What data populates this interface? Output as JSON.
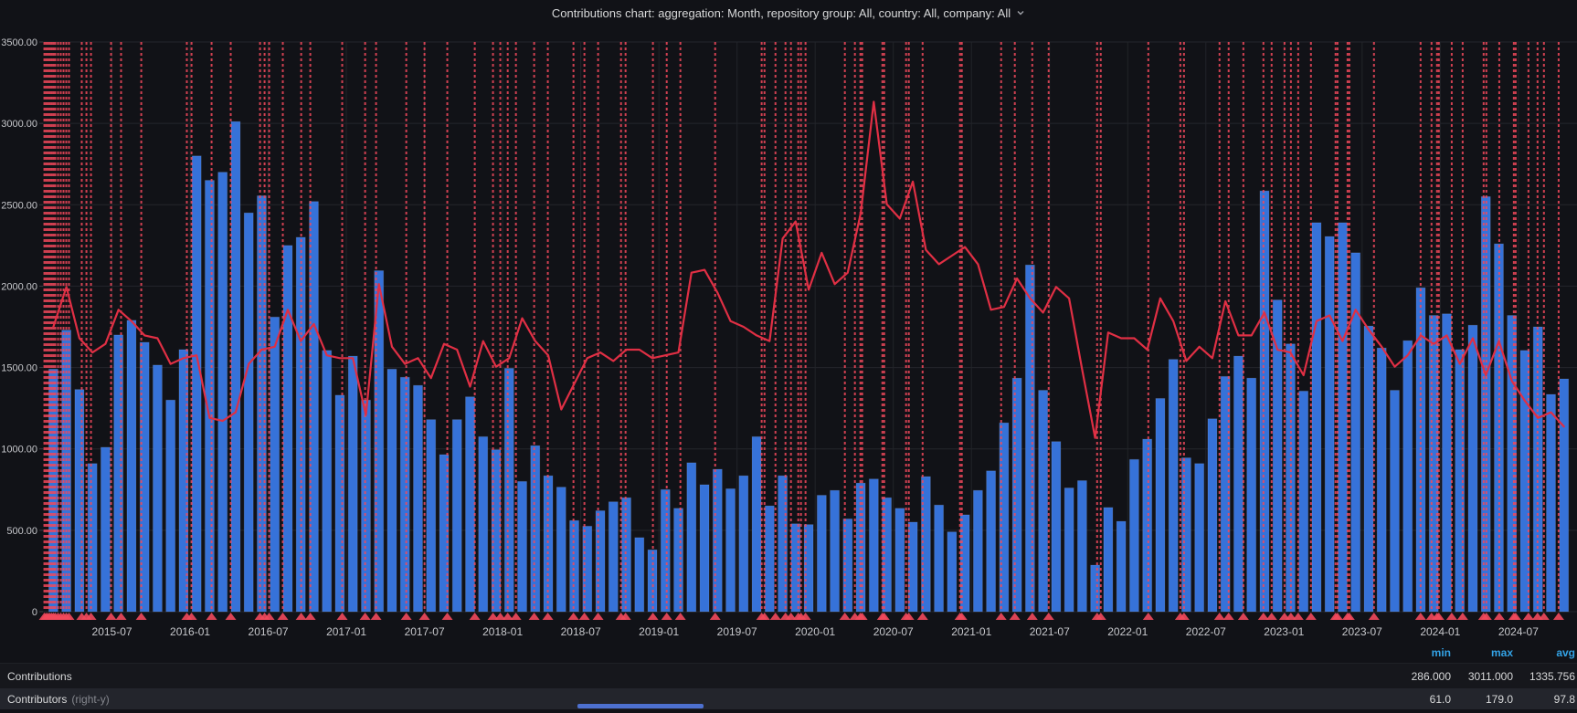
{
  "title": {
    "text": "Contributions chart: aggregation: Month, repository group: All, country: All, company: All"
  },
  "legend": {
    "headers": {
      "min": "min",
      "max": "max",
      "avg": "avg"
    },
    "header_color": "#33a2e5",
    "rows": [
      {
        "label": "Contributions",
        "axis_note": "",
        "min": "286.000",
        "max": "3011.000",
        "avg": "1335.756"
      },
      {
        "label": "Contributors",
        "axis_note": "(right-y)",
        "min": "61.0",
        "max": "179.0",
        "avg": "97.8"
      }
    ]
  },
  "chart_data": {
    "type": "bar+line",
    "title": "Contributions chart: aggregation: Month, repository group: All, country: All, company: All",
    "background": "#111217",
    "grid": {
      "on": true,
      "color": "#24262c"
    },
    "left_axis": {
      "min": 0,
      "max": 3500,
      "tick_step": 500,
      "labels": [
        "3500.00",
        "3000.00",
        "2500.00",
        "2000.00",
        "1500.00",
        "1000.00",
        "500.00",
        "0"
      ]
    },
    "right_axis": {
      "min": 0,
      "max": 200,
      "labels_visible": false
    },
    "x_ticks": [
      "2015-07",
      "2016-01",
      "2016-07",
      "2017-01",
      "2017-07",
      "2018-01",
      "2018-07",
      "2019-01",
      "2019-07",
      "2020-01",
      "2020-07",
      "2021-01",
      "2021-07",
      "2022-01",
      "2022-07",
      "2023-01",
      "2023-07",
      "2024-01",
      "2024-07"
    ],
    "start_month": "2015-02",
    "series": [
      {
        "name": "Contributions",
        "type": "bar",
        "axis": "left",
        "color": "#3672d9",
        "values": [
          1490,
          1730,
          1365,
          910,
          1010,
          1700,
          1790,
          1655,
          1515,
          1300,
          1610,
          2800,
          2650,
          2700,
          3011,
          2450,
          2555,
          1810,
          2250,
          2300,
          2520,
          1605,
          1330,
          1570,
          1300,
          2095,
          1490,
          1440,
          1390,
          1180,
          965,
          1180,
          1320,
          1075,
          995,
          1495,
          800,
          1020,
          835,
          765,
          560,
          525,
          620,
          675,
          700,
          455,
          380,
          750,
          635,
          915,
          780,
          875,
          755,
          835,
          1075,
          650,
          835,
          540,
          535,
          715,
          745,
          570,
          790,
          815,
          700,
          635,
          550,
          830,
          655,
          490,
          595,
          745,
          865,
          1160,
          1435,
          2130,
          1360,
          1045,
          760,
          805,
          286,
          640,
          555,
          935,
          1060,
          1310,
          1550,
          945,
          910,
          1185,
          1445,
          1570,
          1435,
          2585,
          1915,
          1645,
          1355,
          2390,
          2305,
          2390,
          2205,
          1755,
          1620,
          1360,
          1665,
          1990,
          1820,
          1830,
          1610,
          1760,
          2550,
          2260,
          1820,
          1605,
          1750,
          1335,
          1430
        ]
      },
      {
        "name": "Contributors",
        "type": "line",
        "axis": "right",
        "color": "#e02f44",
        "values": [
          100,
          114,
          96,
          91,
          94,
          106,
          102,
          97,
          96,
          87,
          89,
          90,
          68,
          67,
          70,
          87,
          92,
          93,
          106,
          95,
          101,
          90,
          89,
          89,
          69,
          115,
          93,
          87,
          89,
          82,
          94,
          92,
          79,
          95,
          86,
          89,
          103,
          95,
          90,
          71,
          80,
          89,
          91,
          88,
          92,
          92,
          89,
          90,
          91,
          119,
          120,
          112,
          102,
          100,
          97,
          95,
          131,
          137,
          113,
          126,
          115,
          119,
          140,
          179,
          143,
          138,
          151,
          127,
          122,
          125,
          128,
          122,
          106,
          107,
          117,
          110,
          105,
          114,
          110,
          85,
          61,
          98,
          96,
          96,
          92,
          110,
          102,
          88,
          93,
          89,
          109,
          97,
          97,
          105,
          92,
          91,
          83,
          102,
          104,
          95,
          106,
          99,
          93,
          86,
          90,
          97,
          94,
          97,
          87,
          96,
          83,
          95,
          81,
          74,
          68,
          70,
          65
        ]
      }
    ],
    "annotations": {
      "color": "#f2495c",
      "style": "dashed-vertical-with-triangle-marker",
      "months_since_2015_01": [
        0.81,
        0.95,
        1.09,
        1.23,
        1.37,
        1.51,
        1.65,
        1.86,
        2.07,
        2.28,
        2.49,
        2.7,
        3.68,
        4.04,
        4.39,
        5.93,
        6.7,
        8.25,
        11.75,
        12.11,
        13.65,
        15.12,
        17.37,
        17.72,
        18.07,
        19.12,
        20.53,
        21.23,
        23.68,
        25.44,
        26.28,
        28.6,
        30.0,
        31.75,
        33.86,
        35.26,
        35.82,
        36.39,
        37.02,
        38.42,
        39.47,
        41.44,
        42.28,
        43.33,
        45.09,
        45.44,
        47.54,
        48.6,
        49.65,
        52.32,
        55.89,
        56.11,
        56.95,
        57.72,
        58.14,
        58.7,
        58.91,
        59.26,
        62.28,
        63.05,
        63.47,
        63.61,
        65.16,
        65.3,
        66.98,
        67.19,
        68.25,
        71.12,
        71.26,
        74.28,
        75.33,
        76.67,
        77.93,
        81.65,
        81.93,
        85.58,
        88.04,
        88.32,
        91.05,
        91.75,
        92.88,
        94.42,
        95.05,
        96.04,
        96.53,
        97.09,
        98.07,
        99.96,
        100.11,
        100.88,
        101.02,
        102.91,
        106.49,
        107.33,
        107.75,
        107.89,
        108.88,
        109.72,
        111.33,
        111.54,
        112.53,
        113.65,
        113.79,
        114.77,
        115.47,
        115.96,
        117.09
      ]
    }
  }
}
